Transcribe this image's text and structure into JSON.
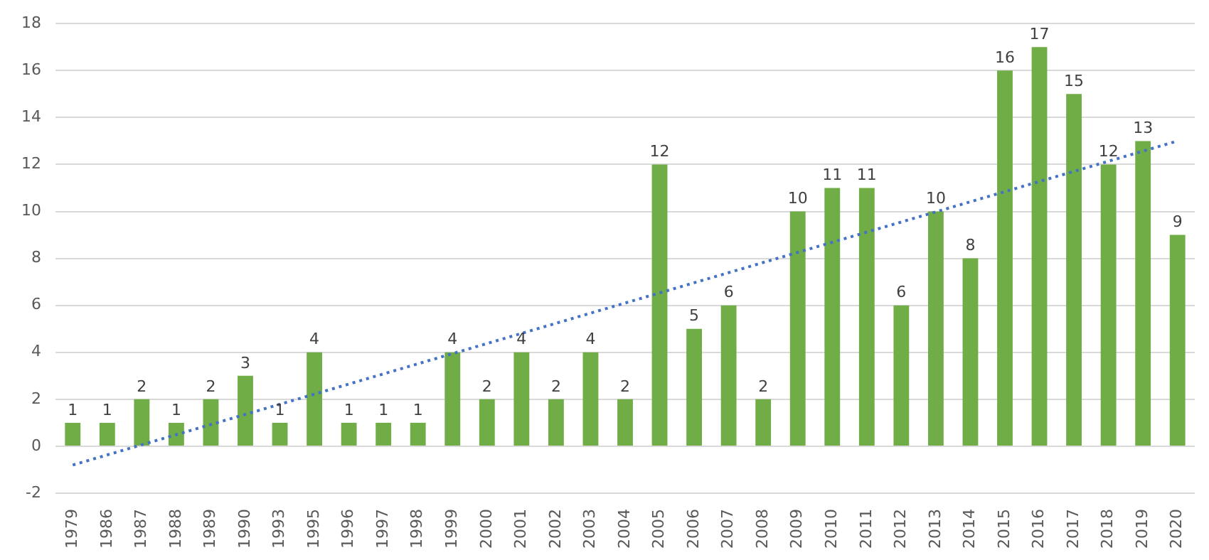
{
  "chart_data": {
    "type": "bar",
    "categories": [
      "1979",
      "1986",
      "1987",
      "1988",
      "1989",
      "1990",
      "1993",
      "1995",
      "1996",
      "1997",
      "1998",
      "1999",
      "2000",
      "2001",
      "2002",
      "2003",
      "2004",
      "2005",
      "2006",
      "2007",
      "2008",
      "2009",
      "2010",
      "2011",
      "2012",
      "2013",
      "2014",
      "2015",
      "2016",
      "2017",
      "2018",
      "2019",
      "2020"
    ],
    "series": [
      {
        "color": "#70ad47",
        "values": [
          1,
          1,
          2,
          1,
          2,
          3,
          1,
          4,
          1,
          1,
          1,
          4,
          2,
          4,
          2,
          4,
          2,
          12,
          5,
          6,
          2,
          10,
          11,
          11,
          6,
          10,
          8,
          16,
          17,
          15,
          12,
          13,
          9
        ],
        "value_labels": [
          "1",
          "1",
          "2",
          "1",
          "2",
          "3",
          "1",
          "4",
          "1",
          "1",
          "1",
          "4",
          "2",
          "4",
          "2",
          "4",
          "2",
          "12",
          "5",
          "6",
          "2",
          "10",
          "11",
          "11",
          "6",
          "10",
          "8",
          "16",
          "17",
          "15",
          "12",
          "13",
          "9"
        ]
      },
      {
        "type": "line",
        "color": "#4472c4",
        "line_style": "dotted",
        "marker": "none",
        "values": [
          -0.8,
          null,
          null,
          null,
          null,
          null,
          null,
          null,
          null,
          null,
          null,
          null,
          null,
          null,
          null,
          null,
          null,
          null,
          null,
          null,
          null,
          null,
          null,
          null,
          null,
          null,
          null,
          null,
          null,
          null,
          null,
          null,
          13
        ]
      }
    ],
    "ylim": [
      -2,
      18
    ],
    "yticks": [
      -2,
      0,
      2,
      4,
      6,
      8,
      10,
      12,
      14,
      16,
      18
    ],
    "grid": "y",
    "legend": false
  }
}
